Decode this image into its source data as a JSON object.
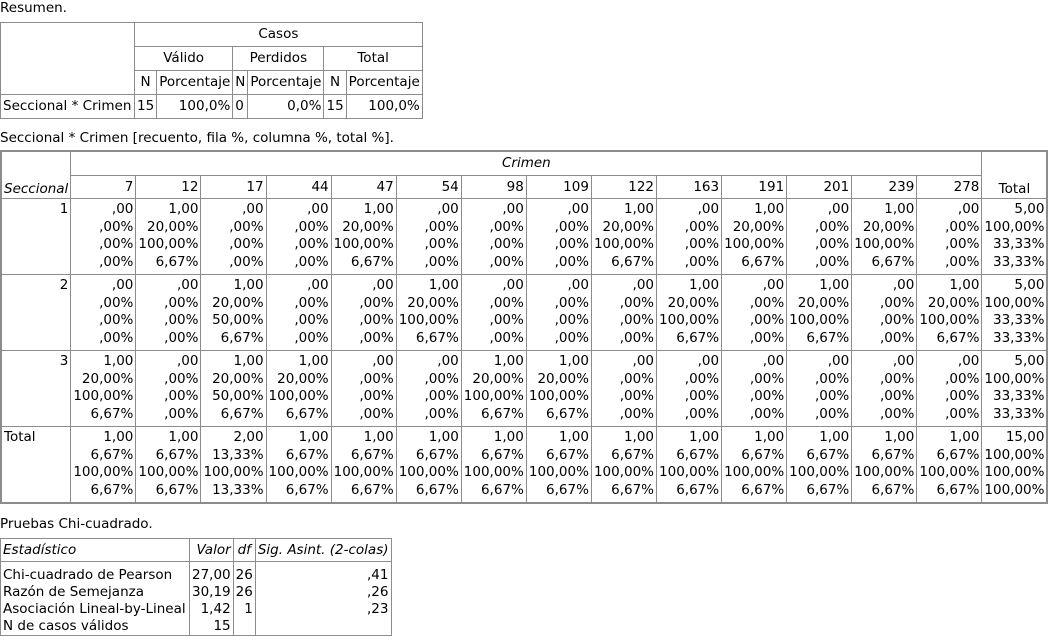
{
  "resumen": {
    "caption": "Resumen.",
    "group_header": "Casos",
    "sub_headers": [
      "Válido",
      "Perdidos",
      "Total"
    ],
    "col_headers": [
      "N",
      "Porcentaje",
      "N",
      "Porcentaje",
      "N",
      "Porcentaje"
    ],
    "row_label": "Seccional * Crimen",
    "row_values": [
      "15",
      "100,0%",
      "0",
      "0,0%",
      "15",
      "100,0%"
    ]
  },
  "crosstab": {
    "caption": "Seccional * Crimen [recuento, fila %, columna %, total %].",
    "col_group": "Crimen",
    "row_var": "Seccional",
    "columns": [
      "7",
      "12",
      "17",
      "44",
      "47",
      "54",
      "98",
      "109",
      "122",
      "163",
      "191",
      "201",
      "239",
      "278"
    ],
    "total_label": "Total",
    "rows": [
      {
        "label": "1",
        "cells": [
          ",00\n,00%\n,00%\n,00%",
          "1,00\n20,00%\n100,00%\n6,67%",
          ",00\n,00%\n,00%\n,00%",
          ",00\n,00%\n,00%\n,00%",
          "1,00\n20,00%\n100,00%\n6,67%",
          ",00\n,00%\n,00%\n,00%",
          ",00\n,00%\n,00%\n,00%",
          ",00\n,00%\n,00%\n,00%",
          "1,00\n20,00%\n100,00%\n6,67%",
          ",00\n,00%\n,00%\n,00%",
          "1,00\n20,00%\n100,00%\n6,67%",
          ",00\n,00%\n,00%\n,00%",
          "1,00\n20,00%\n100,00%\n6,67%",
          ",00\n,00%\n,00%\n,00%",
          "5,00\n100,00%\n33,33%\n33,33%"
        ]
      },
      {
        "label": "2",
        "cells": [
          ",00\n,00%\n,00%\n,00%",
          ",00\n,00%\n,00%\n,00%",
          "1,00\n20,00%\n50,00%\n6,67%",
          ",00\n,00%\n,00%\n,00%",
          ",00\n,00%\n,00%\n,00%",
          "1,00\n20,00%\n100,00%\n6,67%",
          ",00\n,00%\n,00%\n,00%",
          ",00\n,00%\n,00%\n,00%",
          ",00\n,00%\n,00%\n,00%",
          "1,00\n20,00%\n100,00%\n6,67%",
          ",00\n,00%\n,00%\n,00%",
          "1,00\n20,00%\n100,00%\n6,67%",
          ",00\n,00%\n,00%\n,00%",
          "1,00\n20,00%\n100,00%\n6,67%",
          "5,00\n100,00%\n33,33%\n33,33%"
        ]
      },
      {
        "label": "3",
        "cells": [
          "1,00\n20,00%\n100,00%\n6,67%",
          ",00\n,00%\n,00%\n,00%",
          "1,00\n20,00%\n50,00%\n6,67%",
          "1,00\n20,00%\n100,00%\n6,67%",
          ",00\n,00%\n,00%\n,00%",
          ",00\n,00%\n,00%\n,00%",
          "1,00\n20,00%\n100,00%\n6,67%",
          "1,00\n20,00%\n100,00%\n6,67%",
          ",00\n,00%\n,00%\n,00%",
          ",00\n,00%\n,00%\n,00%",
          ",00\n,00%\n,00%\n,00%",
          ",00\n,00%\n,00%\n,00%",
          ",00\n,00%\n,00%\n,00%",
          ",00\n,00%\n,00%\n,00%",
          "5,00\n100,00%\n33,33%\n33,33%"
        ]
      },
      {
        "label": "Total",
        "cells": [
          "1,00\n6,67%\n100,00%\n6,67%",
          "1,00\n6,67%\n100,00%\n6,67%",
          "2,00\n13,33%\n100,00%\n13,33%",
          "1,00\n6,67%\n100,00%\n6,67%",
          "1,00\n6,67%\n100,00%\n6,67%",
          "1,00\n6,67%\n100,00%\n6,67%",
          "1,00\n6,67%\n100,00%\n6,67%",
          "1,00\n6,67%\n100,00%\n6,67%",
          "1,00\n6,67%\n100,00%\n6,67%",
          "1,00\n6,67%\n100,00%\n6,67%",
          "1,00\n6,67%\n100,00%\n6,67%",
          "1,00\n6,67%\n100,00%\n6,67%",
          "1,00\n6,67%\n100,00%\n6,67%",
          "1,00\n6,67%\n100,00%\n6,67%",
          "15,00\n100,00%\n100,00%\n100,00%"
        ]
      }
    ]
  },
  "chi": {
    "caption": "Pruebas Chi-cuadrado.",
    "headers": [
      "Estadístico",
      "Valor",
      "df",
      "Sig. Asint. (2-colas)"
    ],
    "rows": [
      {
        "label": "Chi-cuadrado de Pearson",
        "valor": "27,00",
        "df": "26",
        "sig": ",41"
      },
      {
        "label": "Razón de Semejanza",
        "valor": "30,19",
        "df": "26",
        "sig": ",26"
      },
      {
        "label": "Asociación Lineal-by-Lineal",
        "valor": "1,42",
        "df": "1",
        "sig": ",23"
      },
      {
        "label": "N de casos válidos",
        "valor": "15",
        "df": "",
        "sig": ""
      }
    ]
  }
}
